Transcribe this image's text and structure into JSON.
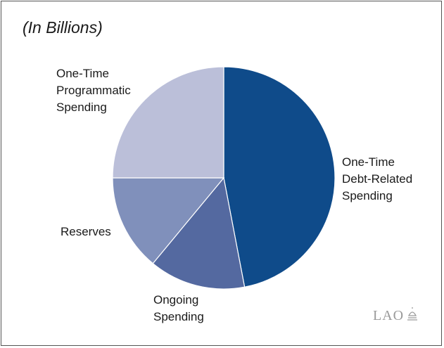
{
  "chart_data": {
    "type": "pie",
    "subtitle": "(In Billions)",
    "slices": [
      {
        "label_lines": [
          "One-Time",
          "Debt-Related",
          "Spending"
        ],
        "value": 47.0,
        "color": "#0f4b8a"
      },
      {
        "label_lines": [
          "Ongoing",
          "Spending"
        ],
        "value": 14.0,
        "color": "#5469a0"
      },
      {
        "label_lines": [
          "Reserves"
        ],
        "value": 14.0,
        "color": "#8090bb"
      },
      {
        "label_lines": [
          "One-Time",
          "Programmatic",
          "Spending"
        ],
        "value": 25.0,
        "color": "#bbbfd9"
      }
    ],
    "start_angle_deg": 0,
    "direction": "clockwise"
  },
  "logo": {
    "text": "LAO"
  }
}
